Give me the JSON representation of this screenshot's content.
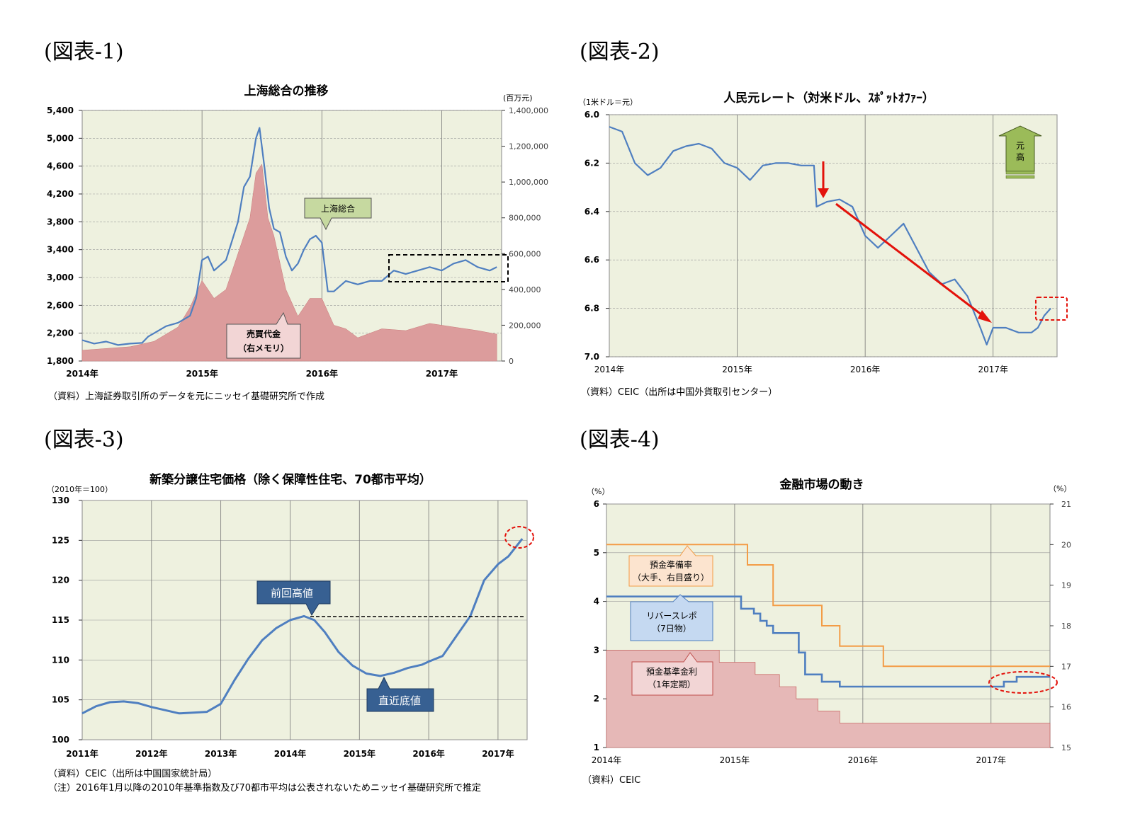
{
  "fig_headings": [
    "(図表-1)",
    "(図表-2)",
    "(図表-3)",
    "(図表-4)"
  ],
  "colors": {
    "line": "#4f7fc0",
    "area": "#dc9c9c",
    "plot_bg": "#eef1df",
    "red": "#e3120b",
    "orange": "#f39c46",
    "green": "#9bbb59"
  },
  "chart_data": [
    {
      "type": "line",
      "title": "上海総合の推移",
      "y2unit": "(百万元)",
      "xticks": [
        "2014年",
        "2015年",
        "2016年",
        "2017年"
      ],
      "y": {
        "min": 1800,
        "max": 5400,
        "ticks": [
          "5,400",
          "5,000",
          "4,600",
          "4,200",
          "3,800",
          "3,400",
          "3,000",
          "2,600",
          "2,200",
          "1,800"
        ]
      },
      "y2": {
        "min": 0,
        "max": 1400000,
        "ticks": [
          "1,400,000",
          "1,200,000",
          "1,000,000",
          "800,000",
          "600,000",
          "400,000",
          "200,000",
          "0"
        ]
      },
      "series": [
        {
          "name": "上海総合",
          "kind": "line",
          "x": [
            2014.0,
            2014.1,
            2014.2,
            2014.3,
            2014.4,
            2014.5,
            2014.55,
            2014.6,
            2014.7,
            2014.8,
            2014.9,
            2014.95,
            2015.0,
            2015.05,
            2015.1,
            2015.2,
            2015.3,
            2015.35,
            2015.4,
            2015.45,
            2015.48,
            2015.52,
            2015.56,
            2015.6,
            2015.65,
            2015.7,
            2015.75,
            2015.8,
            2015.85,
            2015.9,
            2015.95,
            2016.0,
            2016.05,
            2016.1,
            2016.2,
            2016.3,
            2016.4,
            2016.5,
            2016.6,
            2016.7,
            2016.8,
            2016.9,
            2017.0,
            2017.1,
            2017.2,
            2017.3,
            2017.4,
            2017.46
          ],
          "y": [
            2100,
            2050,
            2080,
            2030,
            2050,
            2060,
            2150,
            2200,
            2300,
            2350,
            2450,
            2700,
            3250,
            3300,
            3100,
            3250,
            3800,
            4300,
            4450,
            5000,
            5150,
            4600,
            4000,
            3700,
            3650,
            3300,
            3100,
            3200,
            3400,
            3550,
            3600,
            3500,
            2800,
            2800,
            2950,
            2900,
            2950,
            2950,
            3100,
            3050,
            3100,
            3150,
            3100,
            3200,
            3250,
            3150,
            3100,
            3150
          ]
        },
        {
          "name": "売買代金（右メモリ）",
          "kind": "area",
          "axis": "y2",
          "x": [
            2014.0,
            2014.2,
            2014.4,
            2014.6,
            2014.8,
            2014.9,
            2015.0,
            2015.1,
            2015.2,
            2015.3,
            2015.4,
            2015.45,
            2015.5,
            2015.55,
            2015.6,
            2015.7,
            2015.8,
            2015.9,
            2016.0,
            2016.1,
            2016.2,
            2016.3,
            2016.5,
            2016.7,
            2016.9,
            2017.1,
            2017.3,
            2017.46
          ],
          "y": [
            60000,
            70000,
            80000,
            110000,
            190000,
            300000,
            450000,
            350000,
            400000,
            600000,
            800000,
            1050000,
            1100000,
            800000,
            700000,
            400000,
            250000,
            350000,
            350000,
            200000,
            180000,
            130000,
            180000,
            170000,
            210000,
            190000,
            170000,
            150000
          ]
        }
      ],
      "annotations": [
        "上海総合",
        "売買代金",
        "（右メモリ）"
      ],
      "source": "（資料）上海証券取引所のデータを元にニッセイ基礎研究所で作成"
    },
    {
      "type": "line",
      "title": "人民元レート（対米ドル、ｽﾎﾟｯﾄｵﾌｧｰ）",
      "yunit": "（1米ドル＝元）",
      "xticks": [
        "2014年",
        "2015年",
        "2016年",
        "2017年"
      ],
      "y": {
        "min": 6.0,
        "max": 7.0,
        "inverted": true,
        "ticks": [
          "6.0",
          "6.2",
          "6.4",
          "6.6",
          "6.8",
          "7.0"
        ]
      },
      "series": [
        {
          "name": "人民元レート",
          "kind": "line",
          "x": [
            2014.0,
            2014.1,
            2014.2,
            2014.3,
            2014.4,
            2014.5,
            2014.6,
            2014.7,
            2014.8,
            2014.9,
            2015.0,
            2015.1,
            2015.2,
            2015.3,
            2015.4,
            2015.5,
            2015.6,
            2015.62,
            2015.7,
            2015.8,
            2015.9,
            2016.0,
            2016.1,
            2016.2,
            2016.3,
            2016.4,
            2016.5,
            2016.6,
            2016.7,
            2016.8,
            2016.9,
            2016.95,
            2017.0,
            2017.1,
            2017.2,
            2017.3,
            2017.35,
            2017.4,
            2017.45
          ],
          "y": [
            6.05,
            6.07,
            6.2,
            6.25,
            6.22,
            6.15,
            6.13,
            6.12,
            6.14,
            6.2,
            6.22,
            6.27,
            6.21,
            6.2,
            6.2,
            6.21,
            6.21,
            6.38,
            6.36,
            6.35,
            6.38,
            6.5,
            6.55,
            6.5,
            6.45,
            6.55,
            6.65,
            6.7,
            6.68,
            6.75,
            6.88,
            6.95,
            6.88,
            6.88,
            6.9,
            6.9,
            6.88,
            6.83,
            6.8
          ]
        }
      ],
      "annotations": [
        "元",
        "高"
      ],
      "source": "（資料）CEIC（出所は中国外貨取引センター）"
    },
    {
      "type": "line",
      "title": "新築分譲住宅価格（除く保障性住宅、70都市平均）",
      "yunit": "（2010年＝100）",
      "xticks": [
        "2011年",
        "2012年",
        "2013年",
        "2014年",
        "2015年",
        "2016年",
        "2017年"
      ],
      "y": {
        "min": 100,
        "max": 130,
        "ticks": [
          "130",
          "125",
          "120",
          "115",
          "110",
          "105",
          "100"
        ]
      },
      "series": [
        {
          "name": "新築分譲住宅価格",
          "kind": "line",
          "x": [
            2011.0,
            2011.2,
            2011.4,
            2011.6,
            2011.8,
            2012.0,
            2012.2,
            2012.4,
            2012.6,
            2012.8,
            2013.0,
            2013.2,
            2013.4,
            2013.6,
            2013.8,
            2014.0,
            2014.2,
            2014.35,
            2014.5,
            2014.7,
            2014.9,
            2015.1,
            2015.3,
            2015.5,
            2015.7,
            2015.9,
            2016.0,
            2016.2,
            2016.4,
            2016.6,
            2016.8,
            2017.0,
            2017.15,
            2017.35
          ],
          "y": [
            103.3,
            104.2,
            104.7,
            104.8,
            104.6,
            104.1,
            103.7,
            103.3,
            103.4,
            103.5,
            104.5,
            107.5,
            110.2,
            112.5,
            114.0,
            115.0,
            115.5,
            115.0,
            113.5,
            111.0,
            109.3,
            108.3,
            108.0,
            108.4,
            109.0,
            109.4,
            109.8,
            110.5,
            113.0,
            115.5,
            120.0,
            122.0,
            123.0,
            125.2
          ]
        }
      ],
      "annotations": [
        "前回高値",
        "直近底値"
      ],
      "sources": [
        "（資料）CEIC（出所は中国国家統計局）",
        "（注）2016年1月以降の2010年基準指数及び70都市平均は公表されないためニッセイ基礎研究所で推定"
      ]
    },
    {
      "type": "line",
      "title": "金融市場の動き",
      "yunit": "（%）",
      "y2unit": "（%）",
      "xticks": [
        "2014年",
        "2015年",
        "2016年",
        "2017年"
      ],
      "y": {
        "min": 1,
        "max": 6,
        "ticks": [
          "6",
          "5",
          "4",
          "3",
          "2",
          "1"
        ]
      },
      "y2": {
        "min": 15,
        "max": 21,
        "ticks": [
          "21",
          "20",
          "19",
          "18",
          "17",
          "16",
          "15"
        ]
      },
      "series": [
        {
          "name": "預金準備率（大手、右目盛り）",
          "kind": "step",
          "axis": "y2",
          "x": [
            2014.0,
            2015.1,
            2015.3,
            2015.68,
            2015.82,
            2016.16,
            2017.46
          ],
          "y": [
            20.0,
            19.5,
            18.5,
            18.0,
            17.5,
            17.0,
            17.0
          ]
        },
        {
          "name": "リバースレポ（7日物）",
          "kind": "step",
          "x": [
            2014.0,
            2015.05,
            2015.15,
            2015.2,
            2015.25,
            2015.3,
            2015.5,
            2015.55,
            2015.68,
            2015.82,
            2017.1,
            2017.2,
            2017.46
          ],
          "y": [
            4.1,
            3.85,
            3.75,
            3.6,
            3.5,
            3.35,
            2.95,
            2.5,
            2.35,
            2.25,
            2.35,
            2.45,
            2.45
          ]
        },
        {
          "name": "預金基準金利（1年定期）",
          "kind": "steparea",
          "x": [
            2014.0,
            2014.88,
            2015.16,
            2015.35,
            2015.48,
            2015.65,
            2015.82,
            2017.46
          ],
          "y": [
            3.0,
            2.75,
            2.5,
            2.25,
            2.0,
            1.75,
            1.5,
            1.5
          ]
        }
      ],
      "annotations": [
        "預金準備率",
        "（大手、右目盛り）",
        "リバースレポ",
        "（7日物）",
        "預金基準金利",
        "（1年定期）"
      ],
      "source": "（資料）CEIC"
    }
  ]
}
